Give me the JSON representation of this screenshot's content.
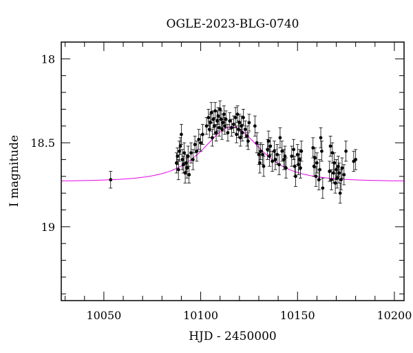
{
  "chart_data": {
    "type": "scatter",
    "title": "OGLE-2023-BLG-0740",
    "xlabel": "HJD - 2450000",
    "ylabel": "I magnitude",
    "xlim": [
      10028,
      10205
    ],
    "ylim": [
      19.44,
      17.9
    ],
    "y_inverted": true,
    "x_ticks": [
      10050,
      10100,
      10150,
      10200
    ],
    "y_ticks": [
      18,
      18.5,
      19
    ],
    "x_tick_labels": [
      "10050",
      "10100",
      "10150",
      "10200"
    ],
    "y_tick_labels": [
      "18",
      "18.5",
      "19"
    ],
    "colors": {
      "points": "#000000",
      "model": "#e600e6",
      "axes": "#000000"
    },
    "model": {
      "baseline": 18.73,
      "peak_mag": 18.405,
      "t0": 10116,
      "tE": 18
    },
    "points": [
      [
        10053.5,
        18.72,
        0.05
      ],
      [
        10087.5,
        18.62,
        0.06
      ],
      [
        10088.0,
        18.58,
        0.05
      ],
      [
        10088.5,
        18.66,
        0.06
      ],
      [
        10089.0,
        18.55,
        0.06
      ],
      [
        10089.5,
        18.52,
        0.05
      ],
      [
        10090.0,
        18.45,
        0.06
      ],
      [
        10090.5,
        18.6,
        0.06
      ],
      [
        10091.0,
        18.63,
        0.05
      ],
      [
        10091.5,
        18.56,
        0.06
      ],
      [
        10092.0,
        18.68,
        0.06
      ],
      [
        10092.5,
        18.62,
        0.05
      ],
      [
        10093.0,
        18.65,
        0.06
      ],
      [
        10093.5,
        18.58,
        0.06
      ],
      [
        10094.0,
        18.69,
        0.05
      ],
      [
        10095.0,
        18.56,
        0.06
      ],
      [
        10096.0,
        18.6,
        0.06
      ],
      [
        10097.0,
        18.51,
        0.05
      ],
      [
        10098.0,
        18.55,
        0.06
      ],
      [
        10099.0,
        18.48,
        0.06
      ],
      [
        10100.0,
        18.5,
        0.05
      ],
      [
        10101.0,
        18.45,
        0.06
      ],
      [
        10103.0,
        18.4,
        0.05
      ],
      [
        10104.0,
        18.35,
        0.05
      ],
      [
        10104.5,
        18.42,
        0.05
      ],
      [
        10105.0,
        18.38,
        0.05
      ],
      [
        10105.5,
        18.32,
        0.06
      ],
      [
        10106.0,
        18.47,
        0.05
      ],
      [
        10106.5,
        18.36,
        0.05
      ],
      [
        10107.0,
        18.4,
        0.05
      ],
      [
        10107.5,
        18.31,
        0.05
      ],
      [
        10108.0,
        18.44,
        0.05
      ],
      [
        10108.5,
        18.37,
        0.06
      ],
      [
        10109.0,
        18.34,
        0.05
      ],
      [
        10109.5,
        18.41,
        0.05
      ],
      [
        10110.0,
        18.3,
        0.05
      ],
      [
        10110.5,
        18.36,
        0.05
      ],
      [
        10111.0,
        18.42,
        0.06
      ],
      [
        10111.5,
        18.38,
        0.05
      ],
      [
        10112.0,
        18.33,
        0.05
      ],
      [
        10112.5,
        18.4,
        0.05
      ],
      [
        10113.0,
        18.36,
        0.05
      ],
      [
        10114.0,
        18.44,
        0.05
      ],
      [
        10115.0,
        18.37,
        0.05
      ],
      [
        10116.0,
        18.41,
        0.05
      ],
      [
        10117.0,
        18.39,
        0.05
      ],
      [
        10118.0,
        18.35,
        0.06
      ],
      [
        10118.5,
        18.45,
        0.05
      ],
      [
        10119.0,
        18.33,
        0.05
      ],
      [
        10119.5,
        18.42,
        0.05
      ],
      [
        10120.0,
        18.38,
        0.05
      ],
      [
        10120.5,
        18.47,
        0.05
      ],
      [
        10121.0,
        18.4,
        0.06
      ],
      [
        10121.5,
        18.44,
        0.05
      ],
      [
        10122.0,
        18.35,
        0.05
      ],
      [
        10123.0,
        18.42,
        0.05
      ],
      [
        10124.0,
        18.46,
        0.06
      ],
      [
        10124.5,
        18.49,
        0.05
      ],
      [
        10125.0,
        18.38,
        0.05
      ],
      [
        10128.0,
        18.4,
        0.06
      ],
      [
        10129.0,
        18.5,
        0.06
      ],
      [
        10130.0,
        18.57,
        0.06
      ],
      [
        10130.5,
        18.62,
        0.06
      ],
      [
        10131.0,
        18.55,
        0.05
      ],
      [
        10132.0,
        18.57,
        0.06
      ],
      [
        10132.5,
        18.64,
        0.06
      ],
      [
        10134.5,
        18.54,
        0.06
      ],
      [
        10135.0,
        18.49,
        0.06
      ],
      [
        10135.5,
        18.58,
        0.06
      ],
      [
        10136.0,
        18.52,
        0.05
      ],
      [
        10137.0,
        18.61,
        0.06
      ],
      [
        10138.0,
        18.55,
        0.06
      ],
      [
        10138.5,
        18.6,
        0.06
      ],
      [
        10139.5,
        18.57,
        0.06
      ],
      [
        10140.5,
        18.63,
        0.06
      ],
      [
        10141.0,
        18.47,
        0.06
      ],
      [
        10142.0,
        18.55,
        0.06
      ],
      [
        10143.0,
        18.6,
        0.06
      ],
      [
        10143.5,
        18.58,
        0.06
      ],
      [
        10144.0,
        18.65,
        0.06
      ],
      [
        10147.0,
        18.58,
        0.06
      ],
      [
        10148.0,
        18.54,
        0.06
      ],
      [
        10148.5,
        18.64,
        0.06
      ],
      [
        10149.0,
        18.7,
        0.06
      ],
      [
        10150.0,
        18.57,
        0.06
      ],
      [
        10150.5,
        18.63,
        0.06
      ],
      [
        10151.0,
        18.6,
        0.06
      ],
      [
        10151.5,
        18.65,
        0.06
      ],
      [
        10152.0,
        18.55,
        0.06
      ],
      [
        10158.0,
        18.53,
        0.06
      ],
      [
        10158.5,
        18.64,
        0.06
      ],
      [
        10159.0,
        18.59,
        0.06
      ],
      [
        10159.5,
        18.7,
        0.06
      ],
      [
        10160.0,
        18.62,
        0.06
      ],
      [
        10161.0,
        18.72,
        0.06
      ],
      [
        10161.5,
        18.66,
        0.06
      ],
      [
        10162.0,
        18.47,
        0.06
      ],
      [
        10162.5,
        18.55,
        0.06
      ],
      [
        10163.0,
        18.77,
        0.06
      ],
      [
        10166.5,
        18.67,
        0.06
      ],
      [
        10167.0,
        18.52,
        0.06
      ],
      [
        10167.5,
        18.72,
        0.06
      ],
      [
        10168.0,
        18.56,
        0.06
      ],
      [
        10168.5,
        18.68,
        0.06
      ],
      [
        10169.0,
        18.62,
        0.06
      ],
      [
        10169.5,
        18.74,
        0.06
      ],
      [
        10170.0,
        18.66,
        0.06
      ],
      [
        10170.5,
        18.71,
        0.06
      ],
      [
        10171.0,
        18.64,
        0.06
      ],
      [
        10171.5,
        18.68,
        0.06
      ],
      [
        10172.0,
        18.8,
        0.06
      ],
      [
        10172.5,
        18.72,
        0.06
      ],
      [
        10173.0,
        18.65,
        0.06
      ],
      [
        10174.0,
        18.69,
        0.06
      ],
      [
        10175.0,
        18.55,
        0.06
      ],
      [
        10179.0,
        18.61,
        0.06
      ],
      [
        10180.0,
        18.6,
        0.06
      ]
    ]
  }
}
